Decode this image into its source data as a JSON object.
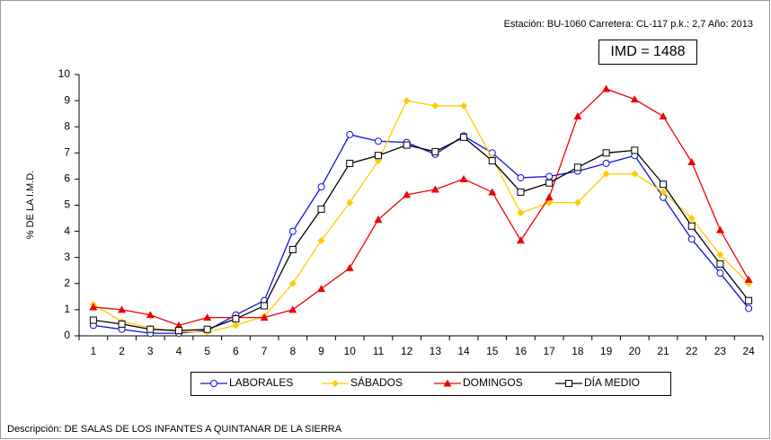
{
  "chart_data": {
    "type": "line",
    "subtitle": "Estación: BU-1060   Carretera: CL-117   p.k.: 2,7   Año: 2013",
    "annotation": "IMD = 1488",
    "y_label": "% DE LA I.M.D.",
    "footer": "Descripción: DE SALAS DE LOS INFANTES A QUINTANAR DE LA SIERRA",
    "categories": [
      "1",
      "2",
      "3",
      "4",
      "5",
      "6",
      "7",
      "8",
      "9",
      "10",
      "11",
      "12",
      "13",
      "14",
      "15",
      "16",
      "17",
      "18",
      "19",
      "20",
      "21",
      "22",
      "23",
      "24"
    ],
    "ylim": [
      0,
      10
    ],
    "yticks": [
      0,
      1,
      2,
      3,
      4,
      5,
      6,
      7,
      8,
      9,
      10
    ],
    "grid": false,
    "series": [
      {
        "name": "LABORALES",
        "color": "#1010e0",
        "marker": "circle",
        "values": [
          0.4,
          0.25,
          0.1,
          0.1,
          0.2,
          0.8,
          1.35,
          4.0,
          5.7,
          7.7,
          7.45,
          7.4,
          6.95,
          7.65,
          7.0,
          6.05,
          6.1,
          6.3,
          6.6,
          6.9,
          5.3,
          3.7,
          2.4,
          1.05
        ]
      },
      {
        "name": "SÁBADOS",
        "color": "#ffcc00",
        "marker": "diamond",
        "values": [
          1.2,
          0.55,
          0.3,
          0.15,
          0.15,
          0.4,
          0.75,
          2.0,
          3.65,
          5.1,
          6.7,
          9.0,
          8.8,
          8.8,
          6.8,
          4.7,
          5.1,
          5.1,
          6.2,
          6.2,
          5.5,
          4.5,
          3.1,
          2.0
        ]
      },
      {
        "name": "DOMINGOS",
        "color": "#ee0000",
        "marker": "triangle",
        "values": [
          1.1,
          1.0,
          0.8,
          0.4,
          0.7,
          0.7,
          0.7,
          1.0,
          1.8,
          2.6,
          4.45,
          5.4,
          5.6,
          6.0,
          5.5,
          3.65,
          5.3,
          8.4,
          9.45,
          9.05,
          8.4,
          6.65,
          4.05,
          2.15
        ]
      },
      {
        "name": "DÍA MEDIO",
        "color": "#000000",
        "marker": "square",
        "values": [
          0.6,
          0.45,
          0.25,
          0.2,
          0.25,
          0.65,
          1.15,
          3.3,
          4.85,
          6.6,
          6.9,
          7.3,
          7.05,
          7.6,
          6.7,
          5.5,
          5.85,
          6.45,
          7.0,
          7.1,
          5.8,
          4.2,
          2.75,
          1.35
        ]
      }
    ]
  }
}
